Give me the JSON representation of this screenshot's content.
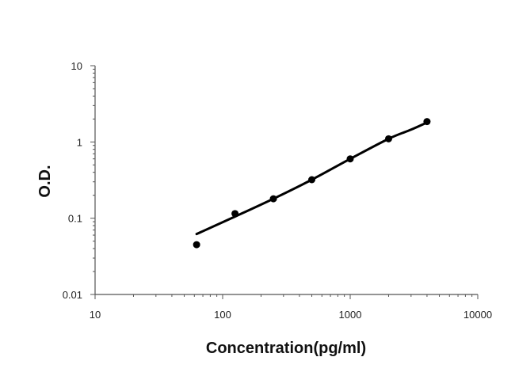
{
  "chart_data": {
    "type": "scatter",
    "title": "",
    "xlabel": "Concentration(pg/ml)",
    "ylabel": "O.D.",
    "x_scale": "log",
    "y_scale": "log",
    "xlim": [
      10,
      10000
    ],
    "ylim": [
      0.01,
      10
    ],
    "x_ticks": [
      10,
      100,
      1000,
      10000
    ],
    "x_tick_labels": [
      "10",
      "100",
      "1000",
      "10000"
    ],
    "y_ticks": [
      0.01,
      0.1,
      1,
      10
    ],
    "y_tick_labels": [
      "0.01",
      "0.1",
      "1",
      "10"
    ],
    "grid": false,
    "legend": "none",
    "series": [
      {
        "type": "scatter",
        "x": [
          62.5,
          125,
          250,
          500,
          1000,
          2000,
          4000
        ],
        "y": [
          0.045,
          0.115,
          0.18,
          0.32,
          0.6,
          1.1,
          1.85
        ],
        "color": "#000000"
      },
      {
        "type": "line",
        "x": [
          62.5,
          125,
          250,
          500,
          1000,
          2000,
          3000,
          4000
        ],
        "y": [
          0.062,
          0.105,
          0.18,
          0.32,
          0.6,
          1.1,
          1.45,
          1.8
        ],
        "color": "#000000"
      }
    ]
  }
}
